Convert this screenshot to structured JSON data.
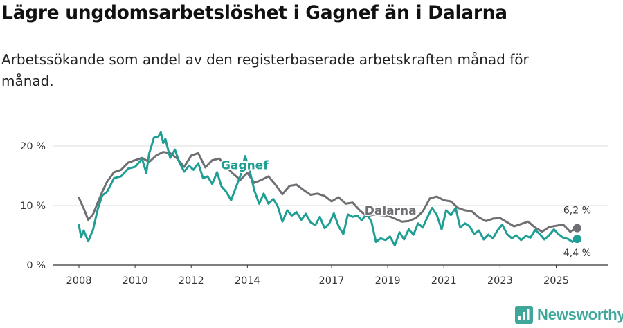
{
  "header": {
    "title": "Lägre ungdomsarbetslöshet i Gagnef än i Dalarna",
    "subtitle": "Arbetssökande som andel av den registerbaserade arbetskraften månad för månad."
  },
  "brand": {
    "name": "Newsworthy",
    "icon": "newsworthy-logo-icon",
    "color": "#3fa79a"
  },
  "chart_data": {
    "type": "line",
    "title": "Lägre ungdomsarbetslöshet i Gagnef än i Dalarna",
    "subtitle": "Arbetssökande som andel av den registerbaserade arbetskraften månad för månad.",
    "xlabel": "",
    "ylabel": "",
    "xlim": [
      2008.0,
      2025.95
    ],
    "ylim": [
      0,
      22
    ],
    "grid": true,
    "yticks": [
      0,
      10,
      20
    ],
    "ytick_labels": [
      "0 %",
      "10 %",
      "20 %"
    ],
    "xticks": [
      2008,
      2010,
      2012,
      2014,
      2017,
      2019,
      2021,
      2023,
      2025
    ],
    "xtick_labels": [
      "2008",
      "2010",
      "2012",
      "2014",
      "2017",
      "2019",
      "2021",
      "2023",
      "2025"
    ],
    "series": [
      {
        "name": "Dalarna",
        "label": "Dalarna",
        "color": "#6e6e73",
        "end_label": "6,2 %",
        "points": [
          [
            2008.0,
            11.3
          ],
          [
            2008.17,
            9.5
          ],
          [
            2008.33,
            7.6
          ],
          [
            2008.5,
            8.5
          ],
          [
            2008.67,
            10.5
          ],
          [
            2008.83,
            12.3
          ],
          [
            2009.0,
            14.0
          ],
          [
            2009.25,
            15.6
          ],
          [
            2009.5,
            16.0
          ],
          [
            2009.75,
            17.2
          ],
          [
            2010.0,
            17.6
          ],
          [
            2010.25,
            18.0
          ],
          [
            2010.5,
            17.3
          ],
          [
            2010.75,
            18.4
          ],
          [
            2011.0,
            19.0
          ],
          [
            2011.25,
            18.8
          ],
          [
            2011.5,
            17.9
          ],
          [
            2011.75,
            16.5
          ],
          [
            2012.0,
            18.4
          ],
          [
            2012.25,
            18.8
          ],
          [
            2012.5,
            16.4
          ],
          [
            2012.75,
            17.6
          ],
          [
            2013.0,
            17.9
          ],
          [
            2013.25,
            16.5
          ],
          [
            2013.5,
            15.3
          ],
          [
            2013.75,
            14.3
          ],
          [
            2014.0,
            15.5
          ],
          [
            2014.25,
            13.8
          ],
          [
            2014.5,
            14.3
          ],
          [
            2014.75,
            14.9
          ],
          [
            2015.0,
            13.5
          ],
          [
            2015.25,
            11.9
          ],
          [
            2015.5,
            13.3
          ],
          [
            2015.75,
            13.5
          ],
          [
            2016.0,
            12.6
          ],
          [
            2016.25,
            11.8
          ],
          [
            2016.5,
            12.0
          ],
          [
            2016.75,
            11.6
          ],
          [
            2017.0,
            10.7
          ],
          [
            2017.25,
            11.4
          ],
          [
            2017.5,
            10.3
          ],
          [
            2017.75,
            10.5
          ],
          [
            2018.0,
            9.2
          ],
          [
            2018.25,
            8.2
          ],
          [
            2018.5,
            8.5
          ],
          [
            2019.0,
            8.3
          ],
          [
            2019.25,
            7.8
          ],
          [
            2019.5,
            7.3
          ],
          [
            2019.75,
            7.4
          ],
          [
            2020.0,
            7.9
          ],
          [
            2020.25,
            9.0
          ],
          [
            2020.5,
            11.2
          ],
          [
            2020.75,
            11.5
          ],
          [
            2021.0,
            10.9
          ],
          [
            2021.25,
            10.7
          ],
          [
            2021.5,
            9.6
          ],
          [
            2021.75,
            9.2
          ],
          [
            2022.0,
            9.0
          ],
          [
            2022.25,
            8.0
          ],
          [
            2022.5,
            7.4
          ],
          [
            2022.75,
            7.8
          ],
          [
            2023.0,
            7.9
          ],
          [
            2023.25,
            7.2
          ],
          [
            2023.5,
            6.5
          ],
          [
            2023.75,
            6.9
          ],
          [
            2024.0,
            7.3
          ],
          [
            2024.25,
            6.3
          ],
          [
            2024.5,
            5.6
          ],
          [
            2024.75,
            6.4
          ],
          [
            2025.0,
            6.6
          ],
          [
            2025.25,
            6.8
          ],
          [
            2025.5,
            5.6
          ],
          [
            2025.75,
            6.2
          ]
        ]
      },
      {
        "name": "Gagnef",
        "label": "Gagnef",
        "color": "#1f9e93",
        "end_label": "4,4 %",
        "points": [
          [
            2008.0,
            6.7
          ],
          [
            2008.08,
            4.7
          ],
          [
            2008.17,
            5.8
          ],
          [
            2008.33,
            4.0
          ],
          [
            2008.5,
            5.9
          ],
          [
            2008.67,
            9.4
          ],
          [
            2008.83,
            11.7
          ],
          [
            2009.0,
            12.3
          ],
          [
            2009.25,
            14.6
          ],
          [
            2009.5,
            14.9
          ],
          [
            2009.75,
            16.2
          ],
          [
            2010.0,
            16.5
          ],
          [
            2010.25,
            17.8
          ],
          [
            2010.4,
            15.5
          ],
          [
            2010.5,
            18.7
          ],
          [
            2010.67,
            21.4
          ],
          [
            2010.83,
            21.6
          ],
          [
            2010.92,
            22.3
          ],
          [
            2011.0,
            20.5
          ],
          [
            2011.08,
            21.2
          ],
          [
            2011.25,
            18.0
          ],
          [
            2011.42,
            19.4
          ],
          [
            2011.58,
            17.2
          ],
          [
            2011.75,
            15.7
          ],
          [
            2011.92,
            16.7
          ],
          [
            2012.08,
            16.0
          ],
          [
            2012.25,
            17.1
          ],
          [
            2012.42,
            14.6
          ],
          [
            2012.58,
            14.9
          ],
          [
            2012.75,
            13.6
          ],
          [
            2012.92,
            15.6
          ],
          [
            2013.08,
            13.2
          ],
          [
            2013.25,
            12.3
          ],
          [
            2013.42,
            10.9
          ],
          [
            2013.58,
            12.9
          ],
          [
            2013.75,
            15.0
          ],
          [
            2013.92,
            18.3
          ],
          [
            2014.08,
            15.9
          ],
          [
            2014.25,
            12.5
          ],
          [
            2014.42,
            10.3
          ],
          [
            2014.58,
            12.0
          ],
          [
            2014.75,
            10.3
          ],
          [
            2014.92,
            11.1
          ],
          [
            2015.08,
            9.9
          ],
          [
            2015.25,
            7.3
          ],
          [
            2015.42,
            9.2
          ],
          [
            2015.58,
            8.3
          ],
          [
            2015.75,
            8.9
          ],
          [
            2015.92,
            7.6
          ],
          [
            2016.08,
            8.6
          ],
          [
            2016.25,
            7.2
          ],
          [
            2016.42,
            6.7
          ],
          [
            2016.58,
            8.1
          ],
          [
            2016.75,
            6.2
          ],
          [
            2016.92,
            7.0
          ],
          [
            2017.08,
            8.7
          ],
          [
            2017.25,
            6.5
          ],
          [
            2017.42,
            5.2
          ],
          [
            2017.58,
            8.5
          ],
          [
            2017.75,
            8.1
          ],
          [
            2017.92,
            8.3
          ],
          [
            2018.08,
            7.5
          ],
          [
            2018.25,
            8.7
          ],
          [
            2018.42,
            7.3
          ],
          [
            2018.58,
            3.9
          ],
          [
            2018.75,
            4.5
          ],
          [
            2018.92,
            4.2
          ],
          [
            2019.08,
            4.8
          ],
          [
            2019.25,
            3.3
          ],
          [
            2019.42,
            5.5
          ],
          [
            2019.58,
            4.3
          ],
          [
            2019.75,
            6.0
          ],
          [
            2019.92,
            5.1
          ],
          [
            2020.08,
            7.0
          ],
          [
            2020.25,
            6.3
          ],
          [
            2020.42,
            8.1
          ],
          [
            2020.58,
            9.6
          ],
          [
            2020.75,
            8.4
          ],
          [
            2020.92,
            6.0
          ],
          [
            2021.08,
            9.2
          ],
          [
            2021.25,
            8.4
          ],
          [
            2021.42,
            9.6
          ],
          [
            2021.58,
            6.3
          ],
          [
            2021.75,
            7.0
          ],
          [
            2021.92,
            6.5
          ],
          [
            2022.08,
            5.2
          ],
          [
            2022.25,
            5.8
          ],
          [
            2022.42,
            4.3
          ],
          [
            2022.58,
            5.1
          ],
          [
            2022.75,
            4.5
          ],
          [
            2022.92,
            5.9
          ],
          [
            2023.08,
            6.8
          ],
          [
            2023.25,
            5.2
          ],
          [
            2023.42,
            4.5
          ],
          [
            2023.58,
            5.0
          ],
          [
            2023.75,
            4.2
          ],
          [
            2023.92,
            4.9
          ],
          [
            2024.08,
            4.6
          ],
          [
            2024.25,
            5.9
          ],
          [
            2024.42,
            5.2
          ],
          [
            2024.58,
            4.3
          ],
          [
            2024.75,
            5.0
          ],
          [
            2024.92,
            6.0
          ],
          [
            2025.08,
            5.2
          ],
          [
            2025.25,
            4.6
          ],
          [
            2025.42,
            4.4
          ],
          [
            2025.58,
            3.9
          ],
          [
            2025.75,
            4.4
          ]
        ]
      }
    ]
  }
}
